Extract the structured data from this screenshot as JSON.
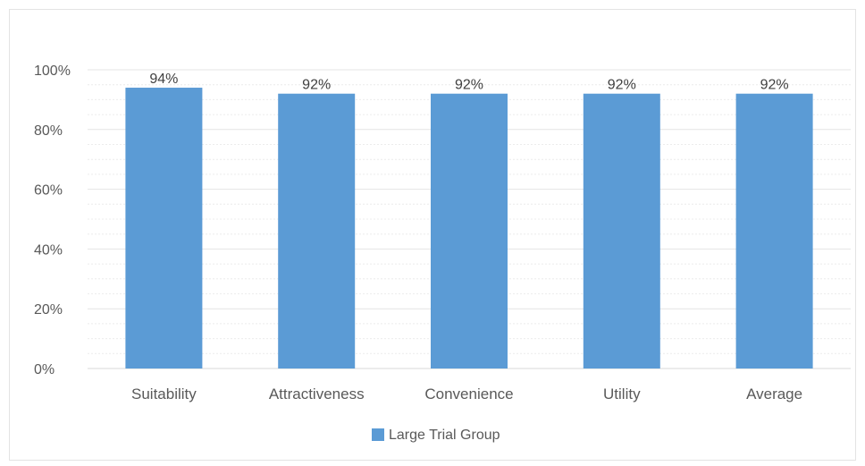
{
  "chart_data": {
    "type": "bar",
    "categories": [
      "Suitability",
      "Attractiveness",
      "Convenience",
      "Utility",
      "Average"
    ],
    "series": [
      {
        "name": "Large Trial Group",
        "values": [
          94,
          92,
          92,
          92,
          92
        ],
        "data_labels": [
          "94%",
          "92%",
          "92%",
          "92%",
          "92%"
        ],
        "color": "#5b9bd5"
      }
    ],
    "ylim": [
      0,
      100
    ],
    "yticks": [
      0,
      20,
      40,
      60,
      80,
      100
    ],
    "ytick_labels": [
      "0%",
      "20%",
      "40%",
      "60%",
      "80%",
      "100%"
    ],
    "grid": true,
    "legend": "bottom"
  }
}
